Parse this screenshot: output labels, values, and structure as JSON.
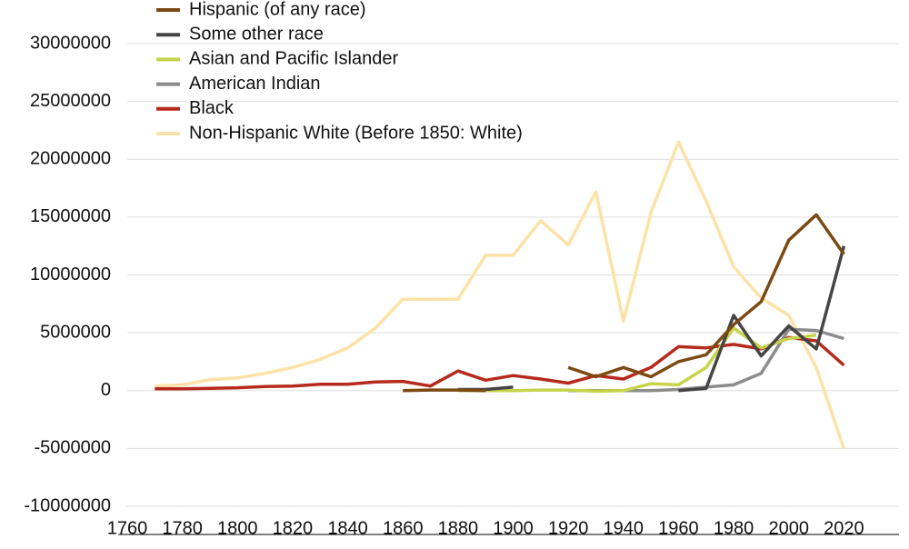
{
  "chart_data": {
    "type": "line",
    "x": [
      1770,
      1780,
      1790,
      1800,
      1810,
      1820,
      1830,
      1840,
      1850,
      1860,
      1870,
      1880,
      1890,
      1900,
      1910,
      1920,
      1930,
      1940,
      1950,
      1960,
      1970,
      1980,
      1990,
      2000,
      2010,
      2020
    ],
    "series": [
      {
        "name": "Hispanic (of any race)",
        "color": "#7b4a12",
        "values": [
          null,
          null,
          null,
          null,
          null,
          null,
          null,
          null,
          null,
          0,
          50000,
          50000,
          0,
          null,
          null,
          2000000,
          1200000,
          2000000,
          1200000,
          2500000,
          3100000,
          5700000,
          7700000,
          13000000,
          15200000,
          11800000
        ]
      },
      {
        "name": "Some other race",
        "color": "#454545",
        "values": [
          null,
          null,
          null,
          null,
          null,
          null,
          null,
          null,
          null,
          null,
          null,
          100000,
          100000,
          300000,
          null,
          null,
          null,
          null,
          null,
          0,
          200000,
          6500000,
          3000000,
          5600000,
          3600000,
          12500000
        ]
      },
      {
        "name": "Asian and Pacific Islander",
        "color": "#c5d44a",
        "values": [
          null,
          null,
          null,
          null,
          null,
          null,
          null,
          null,
          null,
          null,
          null,
          0,
          0,
          0,
          50000,
          50000,
          -50000,
          0,
          600000,
          500000,
          2000000,
          5400000,
          3700000,
          4500000,
          4800000,
          null
        ]
      },
      {
        "name": "American Indian",
        "color": "#8c8c8c",
        "values": [
          null,
          null,
          null,
          null,
          null,
          null,
          null,
          null,
          null,
          null,
          null,
          null,
          null,
          null,
          null,
          0,
          0,
          0,
          0,
          100000,
          300000,
          500000,
          1500000,
          5300000,
          5200000,
          4500000
        ]
      },
      {
        "name": "Black",
        "color": "#b52a1c",
        "values": [
          150000,
          150000,
          200000,
          250000,
          350000,
          400000,
          550000,
          550000,
          750000,
          800000,
          400000,
          1700000,
          900000,
          1300000,
          1000000,
          650000,
          1300000,
          1000000,
          2000000,
          3800000,
          3700000,
          4000000,
          3600000,
          4600000,
          4300000,
          2200000
        ]
      },
      {
        "name": "Non-Hispanic White (Before 1850: White)",
        "color": "#fde2a8",
        "values": [
          400000,
          500000,
          950000,
          1100000,
          1500000,
          2000000,
          2700000,
          3700000,
          5400000,
          7900000,
          7900000,
          7900000,
          11700000,
          11700000,
          14700000,
          12600000,
          17200000,
          6000000,
          15400000,
          21500000,
          16400000,
          10700000,
          8000000,
          6500000,
          2000000,
          -5000000
        ]
      }
    ],
    "xlim": [
      1760,
      2040
    ],
    "xticks": [
      1760,
      1780,
      1800,
      1820,
      1840,
      1860,
      1880,
      1900,
      1920,
      1940,
      1960,
      1980,
      2000,
      2020
    ],
    "ylim": [
      -10000000,
      30000000
    ],
    "yticks": [
      -10000000,
      -5000000,
      0,
      5000000,
      10000000,
      15000000,
      20000000,
      25000000,
      30000000
    ],
    "grid": true
  }
}
